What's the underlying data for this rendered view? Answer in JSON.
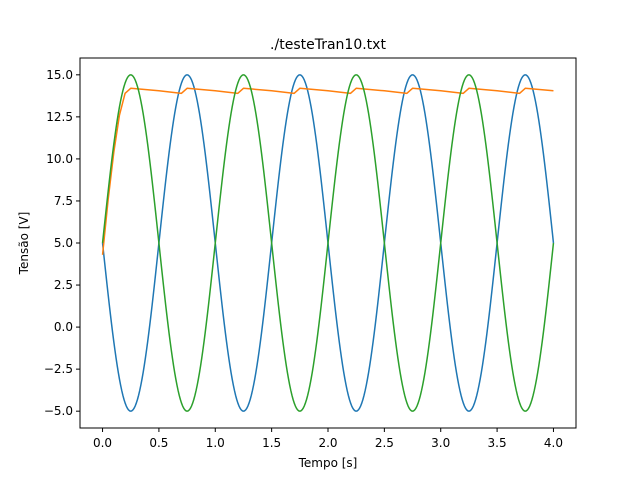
{
  "chart_data": {
    "type": "line",
    "title": "./testeTran10.txt",
    "xlabel": "Tempo [s]",
    "ylabel": "Tensão [V]",
    "xlim": [
      -0.2,
      4.2
    ],
    "ylim": [
      -6.0,
      16.0
    ],
    "xticks": [
      0.0,
      0.5,
      1.0,
      1.5,
      2.0,
      2.5,
      3.0,
      3.5,
      4.0
    ],
    "xtick_labels": [
      "0.0",
      "0.5",
      "1.0",
      "1.5",
      "2.0",
      "2.5",
      "3.0",
      "3.5",
      "4.0"
    ],
    "yticks": [
      -5.0,
      -2.5,
      0.0,
      2.5,
      5.0,
      7.5,
      10.0,
      12.5,
      15.0
    ],
    "ytick_labels": [
      "−5.0",
      "−2.5",
      "0.0",
      "2.5",
      "5.0",
      "7.5",
      "10.0",
      "12.5",
      "15.0"
    ],
    "grid": false,
    "series": [
      {
        "color": "#1f77b4",
        "x": [
          0.0,
          0.05,
          0.1,
          0.15,
          0.2,
          0.25,
          0.3,
          0.35,
          0.4,
          0.45,
          0.5,
          0.55,
          0.6,
          0.65,
          0.7,
          0.75,
          0.8,
          0.85,
          0.9,
          0.95,
          1.0,
          1.05,
          1.1,
          1.15,
          1.2,
          1.25,
          1.3,
          1.35,
          1.4,
          1.45,
          1.5,
          1.55,
          1.6,
          1.65,
          1.7,
          1.75,
          1.8,
          1.85,
          1.9,
          1.95,
          2.0,
          2.05,
          2.1,
          2.15,
          2.2,
          2.25,
          2.3,
          2.35,
          2.4,
          2.45,
          2.5,
          2.55,
          2.6,
          2.65,
          2.7,
          2.75,
          2.8,
          2.85,
          2.9,
          2.95,
          3.0,
          3.05,
          3.1,
          3.15,
          3.2,
          3.25,
          3.3,
          3.35,
          3.4,
          3.45,
          3.5,
          3.55,
          3.6,
          3.65,
          3.7,
          3.75,
          3.8,
          3.85,
          3.9,
          3.95,
          4.0
        ],
        "y": [
          5.0,
          1.91,
          -0.88,
          -3.09,
          -4.51,
          -5.0,
          -4.51,
          -3.09,
          -0.88,
          1.91,
          5.0,
          8.09,
          10.88,
          13.09,
          14.51,
          15.0,
          14.51,
          13.09,
          10.88,
          8.09,
          5.0,
          1.91,
          -0.88,
          -3.09,
          -4.51,
          -5.0,
          -4.51,
          -3.09,
          -0.88,
          1.91,
          5.0,
          8.09,
          10.88,
          13.09,
          14.51,
          15.0,
          14.51,
          13.09,
          10.88,
          8.09,
          5.0,
          1.91,
          -0.88,
          -3.09,
          -4.51,
          -5.0,
          -4.51,
          -3.09,
          -0.88,
          1.91,
          5.0,
          8.09,
          10.88,
          13.09,
          14.51,
          15.0,
          14.51,
          13.09,
          10.88,
          8.09,
          5.0,
          1.91,
          -0.88,
          -3.09,
          -4.51,
          -5.0,
          -4.51,
          -3.09,
          -0.88,
          1.91,
          5.0,
          8.09,
          10.88,
          13.09,
          14.51,
          15.0,
          14.51,
          13.09,
          10.88,
          8.09,
          5.0
        ]
      },
      {
        "color": "#ff7f0e",
        "x": [
          0.0,
          0.05,
          0.1,
          0.15,
          0.2,
          0.25,
          0.5,
          0.7,
          0.75,
          1.0,
          1.2,
          1.25,
          1.5,
          1.7,
          1.75,
          2.0,
          2.2,
          2.25,
          2.5,
          2.7,
          2.75,
          3.0,
          3.2,
          3.25,
          3.5,
          3.7,
          3.75,
          4.0
        ],
        "y": [
          4.3,
          7.6,
          10.4,
          12.6,
          13.9,
          14.2,
          14.05,
          13.9,
          14.2,
          14.05,
          13.9,
          14.2,
          14.05,
          13.9,
          14.2,
          14.05,
          13.9,
          14.2,
          14.05,
          13.9,
          14.2,
          14.05,
          13.9,
          14.2,
          14.05,
          13.9,
          14.2,
          14.05
        ]
      },
      {
        "color": "#2ca02c",
        "x": [
          0.0,
          0.05,
          0.1,
          0.15,
          0.2,
          0.25,
          0.3,
          0.35,
          0.4,
          0.45,
          0.5,
          0.55,
          0.6,
          0.65,
          0.7,
          0.75,
          0.8,
          0.85,
          0.9,
          0.95,
          1.0,
          1.05,
          1.1,
          1.15,
          1.2,
          1.25,
          1.3,
          1.35,
          1.4,
          1.45,
          1.5,
          1.55,
          1.6,
          1.65,
          1.7,
          1.75,
          1.8,
          1.85,
          1.9,
          1.95,
          2.0,
          2.05,
          2.1,
          2.15,
          2.2,
          2.25,
          2.3,
          2.35,
          2.4,
          2.45,
          2.5,
          2.55,
          2.6,
          2.65,
          2.7,
          2.75,
          2.8,
          2.85,
          2.9,
          2.95,
          3.0,
          3.05,
          3.1,
          3.15,
          3.2,
          3.25,
          3.3,
          3.35,
          3.4,
          3.45,
          3.5,
          3.55,
          3.6,
          3.65,
          3.7,
          3.75,
          3.8,
          3.85,
          3.9,
          3.95,
          4.0
        ],
        "y": [
          5.0,
          8.09,
          10.88,
          13.09,
          14.51,
          15.0,
          14.51,
          13.09,
          10.88,
          8.09,
          5.0,
          1.91,
          -0.88,
          -3.09,
          -4.51,
          -5.0,
          -4.51,
          -3.09,
          -0.88,
          1.91,
          5.0,
          8.09,
          10.88,
          13.09,
          14.51,
          15.0,
          14.51,
          13.09,
          10.88,
          8.09,
          5.0,
          1.91,
          -0.88,
          -3.09,
          -4.51,
          -5.0,
          -4.51,
          -3.09,
          -0.88,
          1.91,
          5.0,
          8.09,
          10.88,
          13.09,
          14.51,
          15.0,
          14.51,
          13.09,
          10.88,
          8.09,
          5.0,
          1.91,
          -0.88,
          -3.09,
          -4.51,
          -5.0,
          -4.51,
          -3.09,
          -0.88,
          1.91,
          5.0,
          8.09,
          10.88,
          13.09,
          14.51,
          15.0,
          14.51,
          13.09,
          10.88,
          8.09,
          5.0,
          1.91,
          -0.88,
          -3.09,
          -4.51,
          -5.0,
          -4.51,
          -3.09,
          -0.88,
          1.91,
          5.0
        ]
      }
    ]
  }
}
